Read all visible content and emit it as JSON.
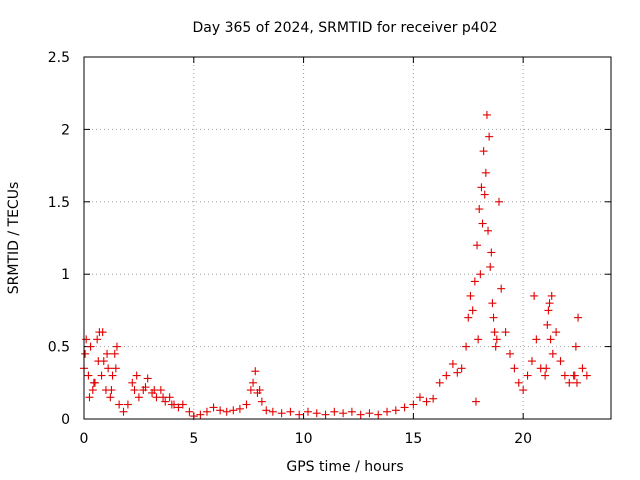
{
  "chart_data": {
    "type": "scatter",
    "title": "Day 365 of 2024, SRMTID for receiver p402",
    "xlabel": "GPS time / hours",
    "ylabel": "SRMTID / TECUs",
    "xlim": [
      0,
      24
    ],
    "ylim": [
      0,
      2.5
    ],
    "xticks": [
      0,
      5,
      10,
      15,
      20
    ],
    "xtick_labels": [
      "0",
      "5",
      "10",
      "15",
      "20"
    ],
    "yticks": [
      0,
      0.5,
      1,
      1.5,
      2,
      2.5
    ],
    "ytick_labels": [
      "0",
      "0.5",
      "1",
      "1.5",
      "2",
      "2.5"
    ],
    "grid": true,
    "marker": "+",
    "marker_color": "#e00000",
    "series": [
      {
        "name": "p402",
        "x": [
          0.0,
          0.1,
          0.2,
          0.3,
          0.4,
          0.5,
          0.6,
          0.7,
          0.8,
          0.9,
          1.0,
          1.1,
          1.2,
          1.3,
          1.4,
          1.5,
          1.6,
          1.8,
          2.0,
          2.2,
          2.3,
          2.5,
          2.7,
          2.9,
          3.1,
          3.3,
          3.5,
          3.7,
          3.9,
          4.1,
          4.3,
          4.5,
          4.8,
          5.0,
          5.3,
          5.6,
          5.9,
          6.2,
          6.5,
          6.8,
          7.1,
          7.4,
          7.6,
          7.7,
          7.8,
          7.9,
          8.0,
          8.1,
          8.3,
          8.6,
          9.0,
          9.4,
          9.8,
          10.2,
          10.6,
          11.0,
          11.4,
          11.8,
          12.2,
          12.6,
          13.0,
          13.4,
          13.8,
          14.2,
          14.6,
          15.0,
          15.3,
          15.6,
          15.9,
          16.2,
          16.5,
          16.8,
          17.0,
          17.2,
          17.4,
          17.5,
          17.6,
          17.7,
          17.8,
          17.9,
          18.0,
          18.1,
          18.2,
          18.3,
          18.4,
          18.5,
          18.6,
          18.7,
          18.8,
          18.9,
          19.0,
          19.2,
          19.4,
          19.6,
          19.8,
          20.0,
          20.2,
          20.4,
          20.5,
          20.6,
          20.8,
          21.0,
          21.1,
          21.2,
          21.3,
          21.5,
          21.7,
          21.9,
          22.1,
          22.3,
          22.4,
          22.5,
          22.7,
          22.9,
          0.05,
          0.25,
          0.45,
          0.65,
          0.85,
          1.05,
          1.25,
          1.45,
          2.4,
          2.8,
          3.2,
          3.6,
          4.0,
          17.85,
          17.95,
          18.05,
          18.15,
          18.25,
          18.35,
          18.45,
          18.55,
          18.65,
          18.75,
          21.05,
          21.15,
          21.25,
          21.35,
          22.35,
          22.45
        ],
        "y": [
          0.35,
          0.55,
          0.3,
          0.5,
          0.2,
          0.25,
          0.55,
          0.6,
          0.3,
          0.4,
          0.2,
          0.35,
          0.15,
          0.3,
          0.45,
          0.5,
          0.1,
          0.05,
          0.1,
          0.25,
          0.2,
          0.15,
          0.2,
          0.28,
          0.18,
          0.15,
          0.2,
          0.12,
          0.15,
          0.1,
          0.08,
          0.1,
          0.05,
          0.02,
          0.03,
          0.05,
          0.08,
          0.06,
          0.05,
          0.06,
          0.07,
          0.1,
          0.2,
          0.25,
          0.33,
          0.18,
          0.2,
          0.12,
          0.06,
          0.05,
          0.04,
          0.05,
          0.03,
          0.05,
          0.04,
          0.03,
          0.05,
          0.04,
          0.05,
          0.03,
          0.04,
          0.03,
          0.05,
          0.06,
          0.08,
          0.1,
          0.15,
          0.12,
          0.14,
          0.25,
          0.3,
          0.38,
          0.32,
          0.35,
          0.5,
          0.7,
          0.85,
          0.75,
          0.95,
          1.2,
          1.45,
          1.6,
          1.85,
          1.7,
          1.3,
          1.05,
          0.8,
          0.6,
          0.55,
          1.5,
          0.9,
          0.6,
          0.45,
          0.35,
          0.25,
          0.2,
          0.3,
          0.4,
          0.85,
          0.55,
          0.35,
          0.3,
          0.65,
          0.8,
          0.85,
          0.6,
          0.4,
          0.3,
          0.25,
          0.3,
          0.5,
          0.7,
          0.35,
          0.3,
          0.45,
          0.15,
          0.25,
          0.4,
          0.6,
          0.45,
          0.2,
          0.35,
          0.3,
          0.22,
          0.2,
          0.15,
          0.1,
          0.12,
          0.55,
          1.0,
          1.35,
          1.55,
          2.1,
          1.95,
          1.15,
          0.7,
          0.5,
          0.35,
          0.75,
          0.55,
          0.45,
          0.3,
          0.25
        ]
      }
    ]
  }
}
